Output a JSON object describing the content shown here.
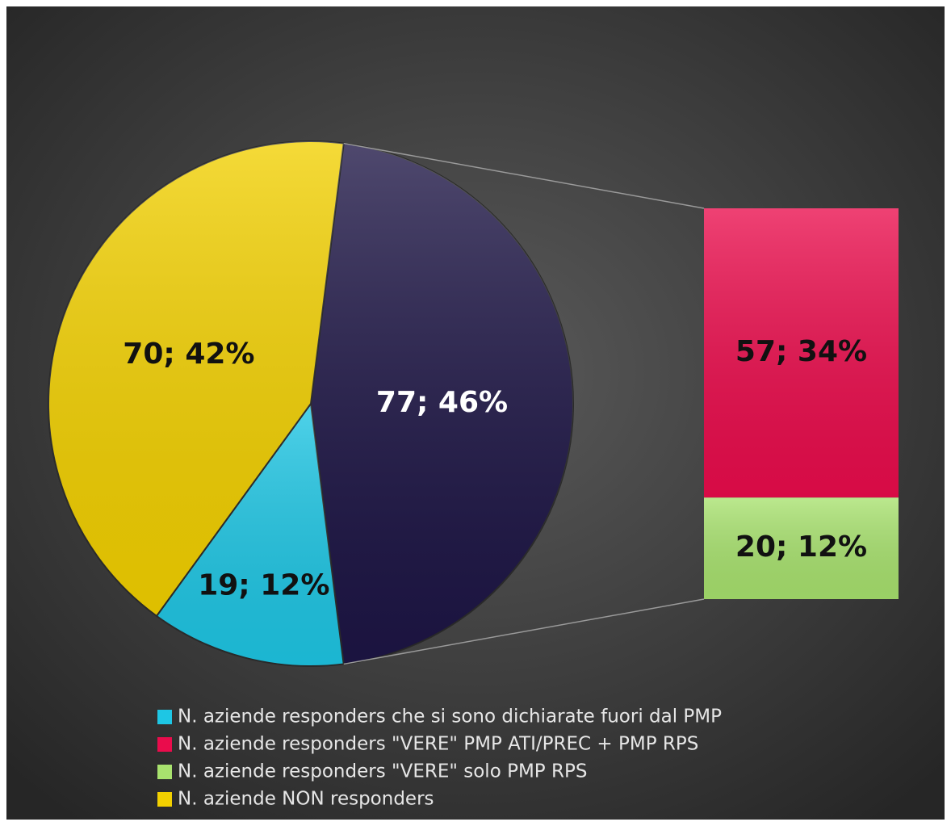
{
  "chart_data": {
    "type": "bar-of-pie",
    "other": {
      "value": 77,
      "percent": 46,
      "value_label": "77; 46%",
      "color": "#1d1545"
    },
    "series": [
      {
        "name": "N. aziende responders che si sono dichiarate fuori dal PMP",
        "color": "#1ec6e4",
        "value": 19,
        "percent": 12,
        "value_label": "19; 12%",
        "in_bar": false
      },
      {
        "name": "N. aziende responders \"VERE\" PMP ATI/PREC + PMP RPS",
        "color": "#ea0c4c",
        "value": 57,
        "percent": 34,
        "value_label": "57; 34%",
        "in_bar": true
      },
      {
        "name": "N. aziende responders \"VERE\" solo PMP RPS",
        "color": "#a8e26e",
        "value": 20,
        "percent": 12,
        "value_label": "20; 12%",
        "in_bar": true
      },
      {
        "name": "N. aziende NON responders",
        "color": "#f2d000",
        "value": 70,
        "percent": 42,
        "value_label": "70; 42%",
        "in_bar": false
      }
    ],
    "legend": "bottom"
  }
}
